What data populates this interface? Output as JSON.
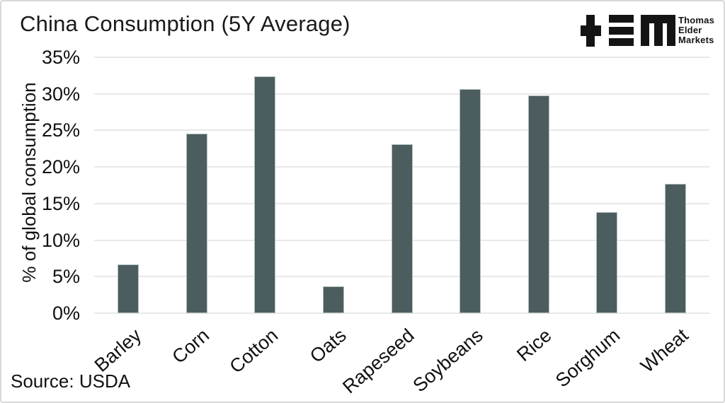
{
  "title": "China Consumption (5Y Average)",
  "source": "Source: USDA",
  "brand": {
    "lines": [
      "Thomas",
      "Elder",
      "Markets"
    ]
  },
  "colors": {
    "bar_fill": "#4c5d5f",
    "bar_border": "#b3bebd",
    "gridline": "#e8e8e8",
    "text": "#111111",
    "logo": "#141414",
    "page_border": "#d8d8d8"
  },
  "chart_data": {
    "type": "bar",
    "title": "China Consumption (5Y Average)",
    "categories": [
      "Barley",
      "Corn",
      "Cotton",
      "Oats",
      "Rapeseed",
      "Soybeans",
      "Rice",
      "Sorghum",
      "Wheat"
    ],
    "values": [
      6.7,
      24.5,
      32.4,
      3.7,
      23.1,
      30.6,
      29.8,
      13.8,
      17.7
    ],
    "xlabel": "",
    "ylabel": "% of global consumption",
    "ylim": [
      0,
      35
    ],
    "yticks": [
      0,
      5,
      10,
      15,
      20,
      25,
      30,
      35
    ],
    "ytick_suffix": "%",
    "grid": true,
    "legend": "none"
  }
}
